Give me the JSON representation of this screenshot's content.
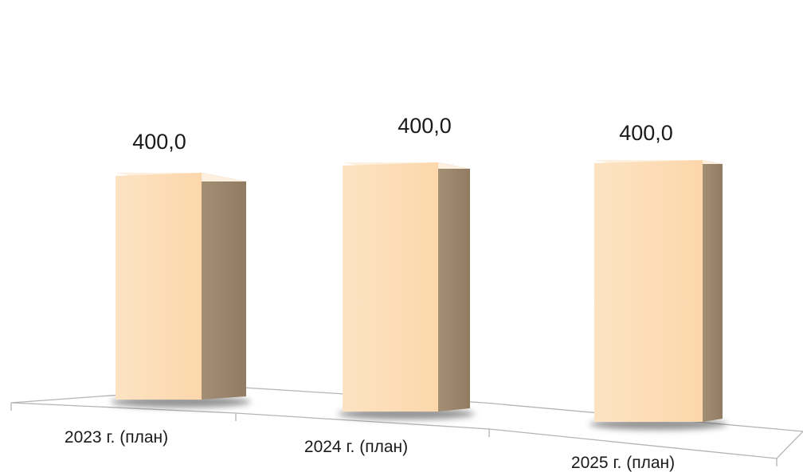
{
  "chart_data": {
    "type": "bar",
    "style": "3d",
    "categories": [
      "2023 г. (план)",
      "2024 г. (план)",
      "2025 г. (план)"
    ],
    "values": [
      400.0,
      400.0,
      400.0
    ],
    "data_labels": [
      "400,0",
      "400,0",
      "400,0"
    ],
    "title": "",
    "xlabel": "",
    "ylabel": "",
    "ylim": [
      0,
      400
    ],
    "grid": false,
    "legend": "none",
    "colors": {
      "bar_front": "#fddcb5",
      "bar_side": "#a08a70",
      "bar_top": "#fef0df",
      "floor_line": "#b0b0b0",
      "shadow": "#3a3a3a"
    }
  }
}
